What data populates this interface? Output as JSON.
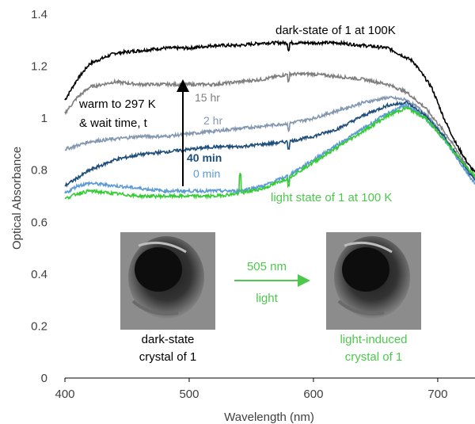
{
  "chart_data": {
    "type": "line",
    "xlabel": "Wavelength (nm)",
    "ylabel": "Optical Absorbance",
    "xlim": [
      400,
      730
    ],
    "ylim": [
      0,
      1.4
    ],
    "x_ticks": [
      {
        "value": 400,
        "label": "400"
      },
      {
        "value": 500,
        "label": "500"
      },
      {
        "value": 600,
        "label": "600"
      },
      {
        "value": 700,
        "label": "700"
      }
    ],
    "y_ticks": [
      {
        "value": 0,
        "label": "0"
      },
      {
        "value": 0.2,
        "label": "0.2"
      },
      {
        "value": 0.4,
        "label": "0.4"
      },
      {
        "value": 0.6,
        "label": "0.6"
      },
      {
        "value": 0.8,
        "label": "0.8"
      },
      {
        "value": 1,
        "label": "1"
      },
      {
        "value": 1.2,
        "label": "1.2"
      },
      {
        "value": 1.4,
        "label": "1.4"
      }
    ],
    "grid": false,
    "series": [
      {
        "id": "dark",
        "color": "#000000",
        "points": [
          [
            400,
            1.07
          ],
          [
            410,
            1.15
          ],
          [
            420,
            1.21
          ],
          [
            440,
            1.25
          ],
          [
            460,
            1.26
          ],
          [
            480,
            1.27
          ],
          [
            500,
            1.27
          ],
          [
            520,
            1.28
          ],
          [
            540,
            1.28
          ],
          [
            560,
            1.29
          ],
          [
            580,
            1.29
          ],
          [
            600,
            1.29
          ],
          [
            620,
            1.29
          ],
          [
            640,
            1.28
          ],
          [
            660,
            1.27
          ],
          [
            680,
            1.22
          ],
          [
            695,
            1.12
          ],
          [
            705,
            1.0
          ],
          [
            715,
            0.9
          ],
          [
            725,
            0.82
          ],
          [
            730,
            0.79
          ]
        ]
      },
      {
        "id": "15hr",
        "color": "#7f7f7f",
        "points": [
          [
            400,
            1.02
          ],
          [
            410,
            1.08
          ],
          [
            420,
            1.12
          ],
          [
            440,
            1.14
          ],
          [
            460,
            1.13
          ],
          [
            480,
            1.13
          ],
          [
            500,
            1.13
          ],
          [
            520,
            1.13
          ],
          [
            540,
            1.14
          ],
          [
            560,
            1.15
          ],
          [
            580,
            1.17
          ],
          [
            600,
            1.17
          ],
          [
            620,
            1.16
          ],
          [
            640,
            1.15
          ],
          [
            660,
            1.13
          ],
          [
            675,
            1.1
          ],
          [
            690,
            1.04
          ],
          [
            705,
            0.95
          ],
          [
            715,
            0.88
          ],
          [
            725,
            0.8
          ],
          [
            730,
            0.77
          ]
        ]
      },
      {
        "id": "2hr",
        "color": "#8497b0",
        "points": [
          [
            400,
            0.88
          ],
          [
            420,
            0.91
          ],
          [
            440,
            0.92
          ],
          [
            460,
            0.93
          ],
          [
            480,
            0.93
          ],
          [
            500,
            0.94
          ],
          [
            520,
            0.95
          ],
          [
            540,
            0.96
          ],
          [
            560,
            0.97
          ],
          [
            580,
            0.98
          ],
          [
            600,
            1.0
          ],
          [
            620,
            1.03
          ],
          [
            640,
            1.06
          ],
          [
            660,
            1.08
          ],
          [
            675,
            1.07
          ],
          [
            690,
            1.02
          ],
          [
            705,
            0.93
          ],
          [
            715,
            0.86
          ],
          [
            725,
            0.79
          ],
          [
            730,
            0.77
          ]
        ]
      },
      {
        "id": "40min",
        "color": "#1f4e79",
        "points": [
          [
            400,
            0.74
          ],
          [
            410,
            0.77
          ],
          [
            420,
            0.8
          ],
          [
            440,
            0.84
          ],
          [
            460,
            0.86
          ],
          [
            480,
            0.87
          ],
          [
            500,
            0.88
          ],
          [
            520,
            0.89
          ],
          [
            540,
            0.89
          ],
          [
            560,
            0.9
          ],
          [
            580,
            0.91
          ],
          [
            600,
            0.93
          ],
          [
            620,
            0.96
          ],
          [
            640,
            1.01
          ],
          [
            660,
            1.05
          ],
          [
            675,
            1.06
          ],
          [
            690,
            1.01
          ],
          [
            705,
            0.93
          ],
          [
            715,
            0.86
          ],
          [
            725,
            0.79
          ],
          [
            730,
            0.76
          ]
        ]
      },
      {
        "id": "0min",
        "color": "#5b9bd5",
        "points": [
          [
            400,
            0.71
          ],
          [
            410,
            0.74
          ],
          [
            420,
            0.75
          ],
          [
            440,
            0.74
          ],
          [
            460,
            0.73
          ],
          [
            480,
            0.72
          ],
          [
            500,
            0.72
          ],
          [
            520,
            0.72
          ],
          [
            540,
            0.72
          ],
          [
            560,
            0.74
          ],
          [
            580,
            0.78
          ],
          [
            600,
            0.84
          ],
          [
            620,
            0.9
          ],
          [
            640,
            0.96
          ],
          [
            660,
            1.02
          ],
          [
            675,
            1.05
          ],
          [
            690,
            1.0
          ],
          [
            705,
            0.92
          ],
          [
            715,
            0.85
          ],
          [
            725,
            0.78
          ],
          [
            730,
            0.75
          ]
        ]
      },
      {
        "id": "light",
        "color": "#33cc33",
        "points": [
          [
            400,
            0.69
          ],
          [
            410,
            0.71
          ],
          [
            420,
            0.72
          ],
          [
            440,
            0.71
          ],
          [
            460,
            0.7
          ],
          [
            480,
            0.7
          ],
          [
            500,
            0.7
          ],
          [
            520,
            0.7
          ],
          [
            540,
            0.71
          ],
          [
            560,
            0.73
          ],
          [
            580,
            0.77
          ],
          [
            600,
            0.83
          ],
          [
            620,
            0.89
          ],
          [
            640,
            0.95
          ],
          [
            660,
            1.01
          ],
          [
            675,
            1.04
          ],
          [
            690,
            1.0
          ],
          [
            705,
            0.92
          ],
          [
            715,
            0.86
          ],
          [
            725,
            0.8
          ],
          [
            730,
            0.78
          ]
        ]
      }
    ],
    "annotations": {
      "dark_state": "dark-state of 1 at 100K",
      "light_state": "light state of 1 at 100 K",
      "t15hr": "15 hr",
      "t2hr": "2 hr",
      "t40min": "40 min",
      "t0min": "0 min",
      "warm_line1": "warm to 297 K",
      "warm_line2": "& wait time, t",
      "wavelength": "505 nm",
      "light": "light",
      "dark_crystal_line1": "dark-state",
      "dark_crystal_line2": "crystal of 1",
      "light_crystal_line1": "light-induced",
      "light_crystal_line2": "crystal of 1"
    },
    "colors": {
      "axis": "#000000",
      "tick_text": "#404040",
      "green_text": "#4cc94c",
      "arrow_green": "#4cc94c",
      "navy_text": "#1f4e79",
      "blue_text": "#5b9bd5",
      "gray_text": "#7f7f7f",
      "steel_text": "#8497b0"
    }
  }
}
